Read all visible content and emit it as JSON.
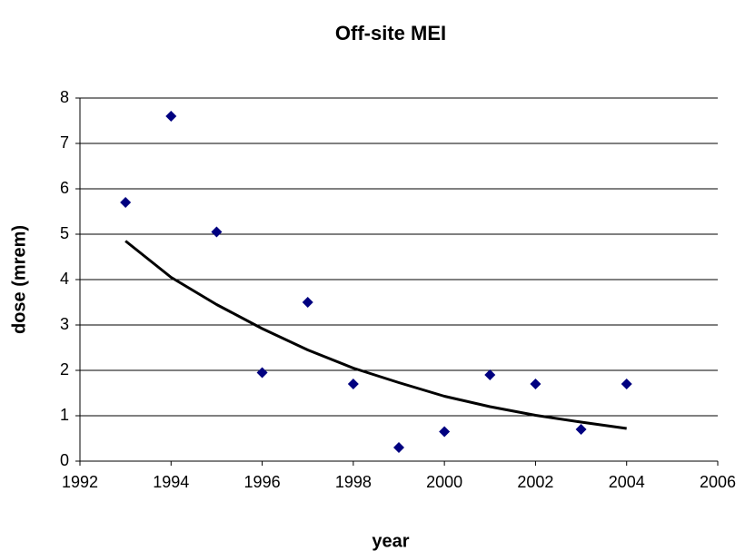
{
  "chart_data": {
    "type": "scatter",
    "title": "Off-site MEI",
    "x_label": "year",
    "y_label": "dose (mrem)",
    "x": [
      1993,
      1994,
      1995,
      1996,
      1997,
      1998,
      1999,
      2000,
      2001,
      2002,
      2003,
      2004
    ],
    "series": [
      {
        "type": "scatter",
        "marker": "diamond",
        "color": "#000080",
        "values": [
          5.7,
          7.6,
          5.05,
          1.95,
          3.5,
          1.7,
          0.3,
          0.65,
          1.9,
          1.7,
          0.7,
          1.7
        ]
      },
      {
        "type": "line",
        "color": "#000000",
        "values": [
          4.85,
          4.05,
          3.45,
          2.92,
          2.45,
          2.05,
          1.73,
          1.43,
          1.2,
          1.01,
          0.86,
          0.72
        ]
      }
    ],
    "xlim": [
      1992,
      2006
    ],
    "xticks": [
      1992,
      1994,
      1996,
      1998,
      2000,
      2002,
      2004,
      2006
    ],
    "ylim": [
      0,
      8
    ],
    "yticks": [
      0,
      1,
      2,
      3,
      4,
      5,
      6,
      7,
      8
    ],
    "grid": true
  }
}
